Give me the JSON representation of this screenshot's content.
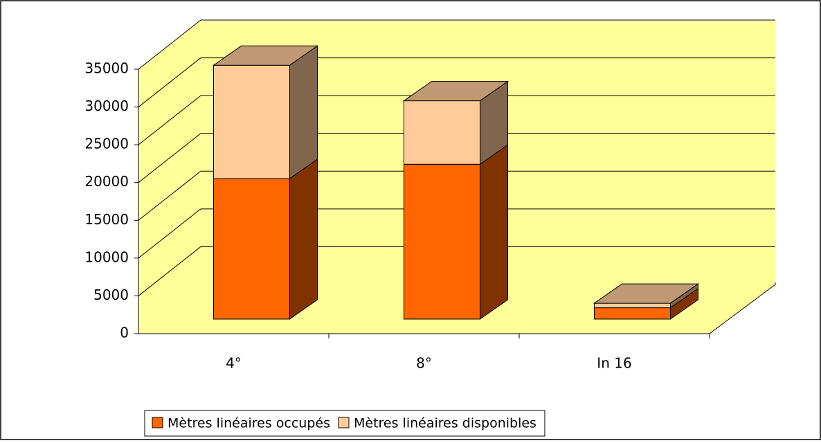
{
  "chart_data": {
    "type": "bar3d_stacked",
    "categories": [
      "4°",
      "8°",
      "In 16"
    ],
    "series": [
      {
        "name": "Mètres linéaires occupés",
        "color": "#ff6600",
        "values": [
          18600,
          20500,
          1500
        ]
      },
      {
        "name": "Mètres linéaires disponibles",
        "color": "#ffcc99",
        "values": [
          15000,
          8400,
          600
        ]
      }
    ],
    "ylim": [
      0,
      35000
    ],
    "yticks": [
      0,
      5000,
      10000,
      15000,
      20000,
      25000,
      30000,
      35000
    ],
    "grid": true,
    "legend": "bottom"
  }
}
